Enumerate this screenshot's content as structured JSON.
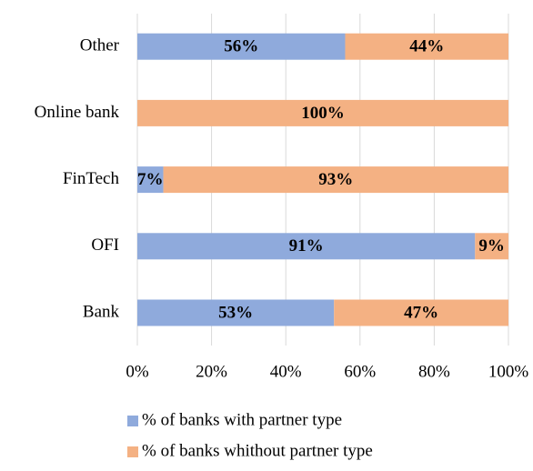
{
  "chart_data": {
    "type": "bar_stacked_horizontal",
    "categories": [
      "Bank",
      "OFI",
      "FinTech",
      "Online bank",
      "Other"
    ],
    "series": [
      {
        "name": "% of banks with partner type",
        "color": "#8faadc",
        "values": [
          53,
          91,
          7,
          0,
          56
        ],
        "value_labels": [
          "53%",
          "91%",
          "7%",
          null,
          "56%"
        ]
      },
      {
        "name": "% of banks whithout partner type",
        "color": "#f4b183",
        "values": [
          47,
          9,
          93,
          100,
          44
        ],
        "value_labels": [
          "47%",
          "9%",
          "93%",
          "100%",
          "44%"
        ]
      }
    ],
    "xlim": [
      0,
      100
    ],
    "xticks": [
      {
        "value": 0,
        "label": "0%"
      },
      {
        "value": 20,
        "label": "20%"
      },
      {
        "value": 40,
        "label": "40%"
      },
      {
        "value": 60,
        "label": "60%"
      },
      {
        "value": 80,
        "label": "80%"
      },
      {
        "value": 100,
        "label": "100%"
      }
    ],
    "grid": true,
    "legend": "bottom"
  }
}
